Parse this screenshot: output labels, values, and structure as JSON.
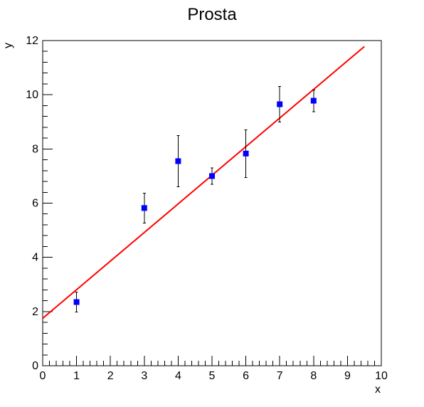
{
  "chart_data": {
    "type": "scatter",
    "title": "Prosta",
    "xlabel": "x",
    "ylabel": "y",
    "xlim": [
      0,
      10
    ],
    "ylim": [
      0,
      12
    ],
    "xticks": [
      0,
      1,
      2,
      3,
      4,
      5,
      6,
      7,
      8,
      9,
      10
    ],
    "yticks": [
      0,
      2,
      4,
      6,
      8,
      10,
      12
    ],
    "x_minor_step": 0.2,
    "y_minor_step": 0.4,
    "points": [
      {
        "x": 1,
        "y": 2.35,
        "yerr_low": 0.37,
        "yerr_high": 0.37
      },
      {
        "x": 3,
        "y": 5.82,
        "yerr_low": 0.55,
        "yerr_high": 0.55
      },
      {
        "x": 4,
        "y": 7.55,
        "yerr_low": 0.95,
        "yerr_high": 0.95
      },
      {
        "x": 5,
        "y": 7.0,
        "yerr_low": 0.3,
        "yerr_high": 0.3
      },
      {
        "x": 6,
        "y": 7.83,
        "yerr_low": 0.88,
        "yerr_high": 0.88
      },
      {
        "x": 7,
        "y": 9.65,
        "yerr_low": 0.65,
        "yerr_high": 0.65
      },
      {
        "x": 8,
        "y": 9.78,
        "yerr_low": 0.4,
        "yerr_high": 0.4
      }
    ],
    "fit_line": {
      "x_start": 0,
      "y_start": 1.75,
      "x_end": 9.5,
      "y_end": 11.78
    },
    "colors": {
      "points": "#0000ff",
      "fit": "#ff0000",
      "axes": "#000000"
    },
    "grid": false
  }
}
